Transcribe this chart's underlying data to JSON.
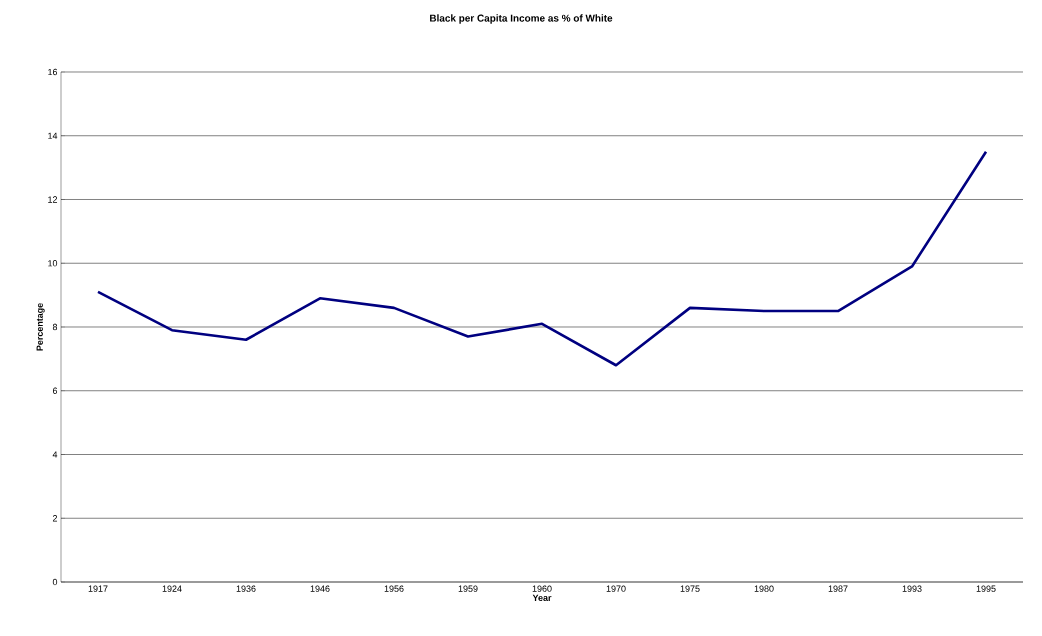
{
  "chart_data": {
    "type": "line",
    "title": "Black per Capita Income as % of White",
    "xlabel": "Year",
    "ylabel": "Percentage",
    "categories": [
      "1917",
      "1924",
      "1936",
      "1946",
      "1956",
      "1959",
      "1960",
      "1970",
      "1975",
      "1980",
      "1987",
      "1993",
      "1995"
    ],
    "series": [
      {
        "color": "#000080",
        "values": [
          9.1,
          7.9,
          7.6,
          8.9,
          8.6,
          7.7,
          8.1,
          6.8,
          8.6,
          8.5,
          8.5,
          9.9,
          13.5
        ]
      }
    ],
    "ylim": [
      0,
      16
    ],
    "yticks": [
      0,
      2,
      4,
      6,
      8,
      10,
      12,
      14,
      16
    ],
    "grid": "y"
  }
}
